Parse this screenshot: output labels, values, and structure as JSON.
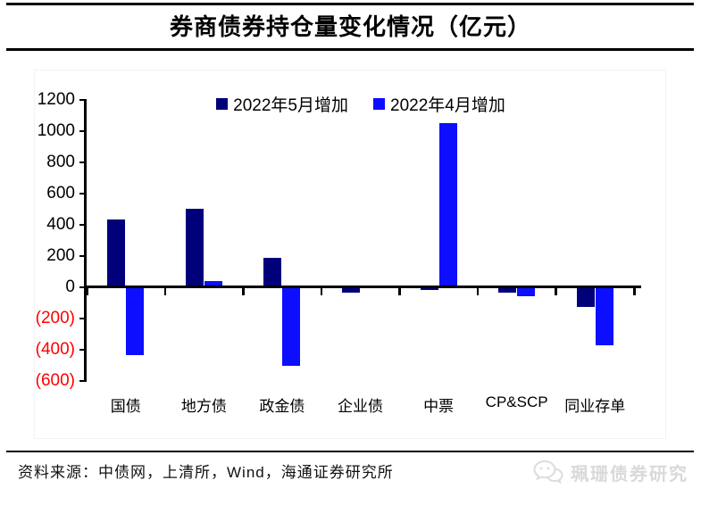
{
  "header": {
    "title": "券商债券持仓量变化情况（亿元）"
  },
  "chart_data": {
    "type": "bar",
    "title": "券商债券持仓量变化情况（亿元）",
    "unit": "亿元",
    "categories": [
      "国债",
      "地方债",
      "政金债",
      "企业债",
      "中票",
      "CP&SCP",
      "同业存单"
    ],
    "series": [
      {
        "name": "2022年5月增加",
        "color": "#00007b",
        "values": [
          430,
          500,
          185,
          -30,
          -15,
          -30,
          -120
        ]
      },
      {
        "name": "2022年4月增加",
        "color": "#0d0dff",
        "values": [
          -430,
          40,
          -500,
          0,
          1050,
          -55,
          -370
        ]
      }
    ],
    "ylim": [
      -600,
      1200
    ],
    "y_ticks": [
      {
        "value": 1200,
        "label": "1200"
      },
      {
        "value": 1000,
        "label": "1000"
      },
      {
        "value": 800,
        "label": "800"
      },
      {
        "value": 600,
        "label": "600"
      },
      {
        "value": 400,
        "label": "400"
      },
      {
        "value": 200,
        "label": "200"
      },
      {
        "value": 0,
        "label": "0"
      },
      {
        "value": -200,
        "label": "(200)"
      },
      {
        "value": -400,
        "label": "(400)"
      },
      {
        "value": -600,
        "label": "(600)"
      }
    ],
    "colors": {
      "axis": "#000000",
      "positive_tick_label": "#000000",
      "negative_tick_label": "#ff0000"
    },
    "legend_position": "top-center",
    "grid": false
  },
  "footer": {
    "source": "资料来源：中债网，上清所，Wind，海通证券研究所"
  },
  "watermark": {
    "icon": "chat-bubbles-icon",
    "label": "珮珊债券研究"
  }
}
